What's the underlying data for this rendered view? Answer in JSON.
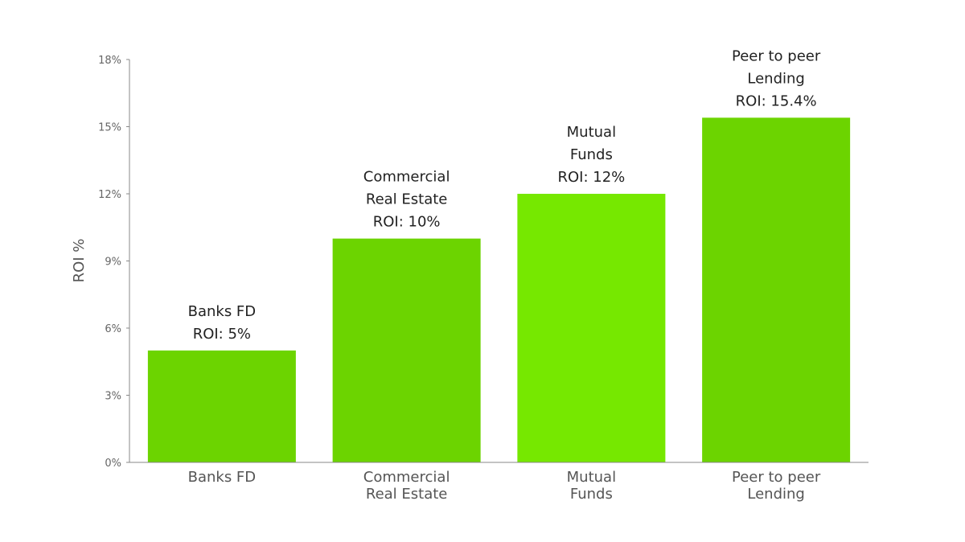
{
  "chart_data": {
    "type": "bar",
    "categories": [
      "Banks FD",
      "Commercial Real Estate",
      "Mutual Funds",
      "Peer to peer Lending"
    ],
    "category_label_lines": [
      [
        "Banks FD"
      ],
      [
        "Commercial",
        "Real Estate"
      ],
      [
        "Mutual",
        "Funds"
      ],
      [
        "Peer to peer",
        "Lending"
      ]
    ],
    "values": [
      5,
      10,
      12,
      15.4
    ],
    "data_labels": [
      [
        "Banks FD",
        "ROI: 5%"
      ],
      [
        "Commercial",
        "Real Estate",
        "ROI: 10%"
      ],
      [
        "Mutual",
        "Funds",
        "ROI: 12%"
      ],
      [
        "Peer to peer",
        "Lending",
        "ROI: 15.4%"
      ]
    ],
    "bar_colors": [
      "#6cd400",
      "#6cd400",
      "#76e800",
      "#6cd400"
    ],
    "title": "",
    "xlabel": "",
    "ylabel": "ROI %",
    "ylim": [
      0,
      18
    ],
    "yticks": [
      0,
      3,
      6,
      9,
      12,
      15,
      18
    ],
    "ytick_labels": [
      "0%",
      "3%",
      "6%",
      "9%",
      "12%",
      "15%",
      "18%"
    ],
    "grid": false,
    "legend": "none"
  }
}
